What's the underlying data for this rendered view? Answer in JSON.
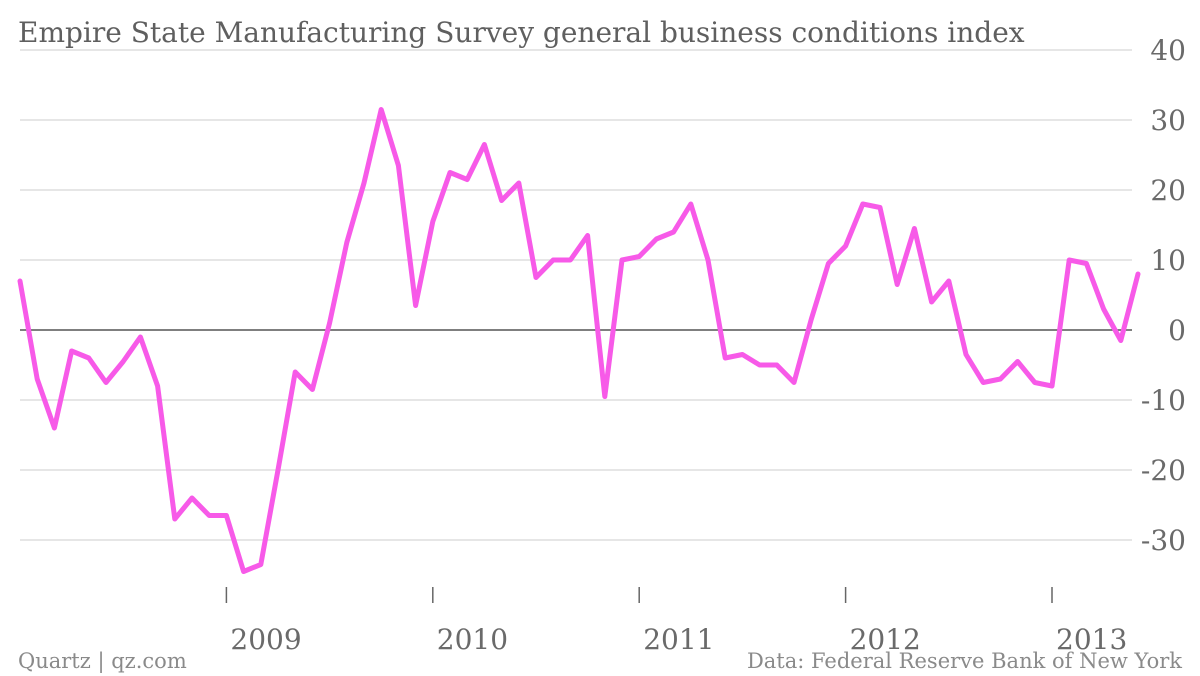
{
  "chart_data": {
    "type": "line",
    "title": "Empire State Manufacturing Survey general business conditions index",
    "xlabel": "",
    "ylabel": "",
    "ylim": [
      -40,
      40
    ],
    "yticks": [
      -30,
      -20,
      -10,
      0,
      10,
      20,
      30,
      40
    ],
    "xticks": [
      "2009",
      "2010",
      "2011",
      "2012",
      "2013"
    ],
    "x_start": "2008-01",
    "grid": true,
    "legend": "none",
    "color": "#f75ae8",
    "series": [
      {
        "name": "",
        "x": [
          "2008-01",
          "2008-02",
          "2008-03",
          "2008-04",
          "2008-05",
          "2008-06",
          "2008-07",
          "2008-08",
          "2008-09",
          "2008-10",
          "2008-11",
          "2008-12",
          "2009-01",
          "2009-02",
          "2009-03",
          "2009-04",
          "2009-05",
          "2009-06",
          "2009-07",
          "2009-08",
          "2009-09",
          "2009-10",
          "2009-11",
          "2009-12",
          "2010-01",
          "2010-02",
          "2010-03",
          "2010-04",
          "2010-05",
          "2010-06",
          "2010-07",
          "2010-08",
          "2010-09",
          "2010-10",
          "2010-11",
          "2010-12",
          "2011-01",
          "2011-02",
          "2011-03",
          "2011-04",
          "2011-05",
          "2011-06",
          "2011-07",
          "2011-08",
          "2011-09",
          "2011-10",
          "2011-11",
          "2011-12",
          "2012-01",
          "2012-02",
          "2012-03",
          "2012-04",
          "2012-05",
          "2012-06",
          "2012-07",
          "2012-08",
          "2012-09",
          "2012-10",
          "2012-11",
          "2012-12",
          "2013-01",
          "2013-02",
          "2013-03",
          "2013-04",
          "2013-05",
          "2013-06"
        ],
        "values": [
          7.0,
          -7.0,
          -14.0,
          -3.0,
          -4.0,
          -7.5,
          -4.5,
          -1.0,
          -8.0,
          -27.0,
          -24.0,
          -26.5,
          -26.5,
          -34.5,
          -33.5,
          -20.0,
          -6.0,
          -8.5,
          1.0,
          12.5,
          21.0,
          31.5,
          23.5,
          3.5,
          15.5,
          22.5,
          21.5,
          26.5,
          18.5,
          21.0,
          7.5,
          10.0,
          10.0,
          13.5,
          -9.5,
          10.0,
          10.5,
          13.0,
          14.0,
          18.0,
          10.0,
          -4.0,
          -3.5,
          -5.0,
          -5.0,
          -7.5,
          1.5,
          9.5,
          12.0,
          18.0,
          17.5,
          6.5,
          14.5,
          4.0,
          7.0,
          -3.5,
          -7.5,
          -7.0,
          -4.5,
          -7.5,
          -8.0,
          10.0,
          9.5,
          3.0,
          -1.5,
          8.0
        ]
      }
    ]
  },
  "footer": {
    "source_left": "Quartz | qz.com",
    "source_right": "Data: Federal Reserve Bank of New York"
  }
}
